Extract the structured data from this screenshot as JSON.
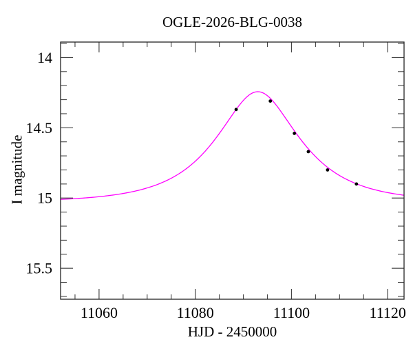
{
  "figure": {
    "title": "OGLE-2026-BLG-0038",
    "xlabel": "HJD - 2450000",
    "ylabel": "I magnitude"
  },
  "chart_data": {
    "type": "line",
    "title": "OGLE-2026-BLG-0038",
    "xlabel": "HJD - 2450000",
    "ylabel": "I magnitude",
    "xlim": [
      11052,
      11123.4
    ],
    "ylim": [
      13.89,
      15.72
    ],
    "y_axis_inverted": true,
    "grid": false,
    "legend": null,
    "x_major_ticks": [
      11060,
      11080,
      11100,
      11120
    ],
    "x_major_tick_labels": [
      "11060",
      "11080",
      "11100",
      "11120"
    ],
    "x_minor_ticks": [
      11055,
      11065,
      11070,
      11075,
      11085,
      11090,
      11095,
      11105,
      11110,
      11115
    ],
    "y_major_ticks": [
      14,
      14.5,
      15,
      15.5
    ],
    "y_major_tick_labels": [
      "14",
      "14.5",
      "15",
      "15.5"
    ],
    "y_minor_ticks": [
      13.9,
      14.1,
      14.2,
      14.3,
      14.4,
      14.6,
      14.7,
      14.8,
      14.9,
      15.1,
      15.2,
      15.3,
      15.4,
      15.6,
      15.7
    ],
    "model_curve": {
      "type": "paczynski_microlensing",
      "t0": 11093.0,
      "tE": 14.4,
      "u0": 0.535,
      "baseline_mag": 15.03,
      "peak_mag": 14.24
    },
    "points": [
      {
        "t": 11088.5,
        "mag": 14.37
      },
      {
        "t": 11095.6,
        "mag": 14.31
      },
      {
        "t": 11100.6,
        "mag": 14.54
      },
      {
        "t": 11103.5,
        "mag": 14.67
      },
      {
        "t": 11107.5,
        "mag": 14.8
      },
      {
        "t": 11113.5,
        "mag": 14.9
      }
    ],
    "colors": {
      "curve": "#ff00ff",
      "points": "#000000",
      "axis": "#222222",
      "ticks": "#444444",
      "background": "#ffffff",
      "text": "#000000"
    }
  }
}
